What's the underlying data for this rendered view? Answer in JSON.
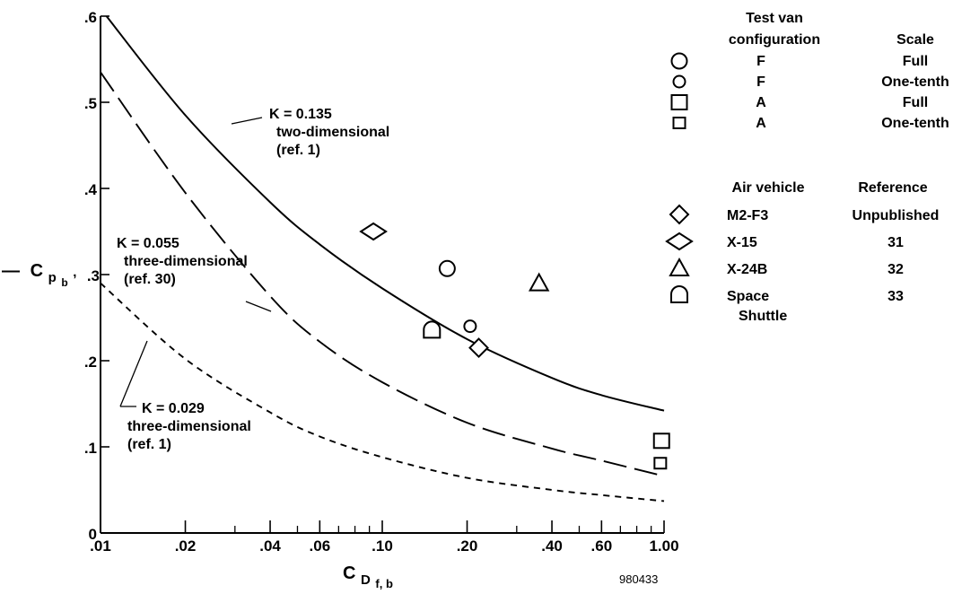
{
  "chart_data": {
    "type": "line",
    "x_scale": "log",
    "xlim": [
      0.01,
      1.0
    ],
    "ylim": [
      0,
      0.6
    ],
    "xlabel_main": "C",
    "xlabel_sub": "D",
    "xlabel_subsub": "f, b",
    "ylabel_prefix": "—",
    "ylabel_main": "C",
    "ylabel_sub": "p",
    "ylabel_subsub": "b",
    "x_ticks": [
      {
        "value": 0.01,
        "label": ".01"
      },
      {
        "value": 0.02,
        "label": ".02"
      },
      {
        "value": 0.04,
        "label": ".04"
      },
      {
        "value": 0.06,
        "label": ".06"
      },
      {
        "value": 0.1,
        "label": ".10"
      },
      {
        "value": 0.2,
        "label": ".20"
      },
      {
        "value": 0.4,
        "label": ".40"
      },
      {
        "value": 0.6,
        "label": ".60"
      },
      {
        "value": 1.0,
        "label": "1.00"
      }
    ],
    "x_minor_ticks": [
      0.03,
      0.05,
      0.07,
      0.08,
      0.09,
      0.3,
      0.5,
      0.7,
      0.8,
      0.9
    ],
    "y_ticks": [
      {
        "value": 0,
        "label": "0"
      },
      {
        "value": 0.1,
        "label": ".1"
      },
      {
        "value": 0.2,
        "label": ".2"
      },
      {
        "value": 0.3,
        "label": ".3"
      },
      {
        "value": 0.4,
        "label": ".4"
      },
      {
        "value": 0.5,
        "label": ".5"
      },
      {
        "value": 0.6,
        "label": ".6"
      }
    ],
    "series": [
      {
        "K": 0.135,
        "style": "solid",
        "x": [
          0.0105,
          0.02,
          0.04,
          0.06,
          0.1,
          0.2,
          0.4,
          0.6,
          1.0
        ],
        "y": [
          0.6,
          0.485,
          0.384,
          0.335,
          0.284,
          0.225,
          0.18,
          0.16,
          0.142
        ]
      },
      {
        "K": 0.055,
        "style": "dashed",
        "x": [
          0.01,
          0.02,
          0.04,
          0.06,
          0.1,
          0.2,
          0.4,
          0.6,
          1.0
        ],
        "y": [
          0.535,
          0.395,
          0.275,
          0.222,
          0.175,
          0.128,
          0.098,
          0.084,
          0.066
        ]
      },
      {
        "K": 0.029,
        "style": "dotted",
        "x": [
          0.01,
          0.02,
          0.04,
          0.06,
          0.1,
          0.2,
          0.4,
          0.6,
          1.0
        ],
        "y": [
          0.29,
          0.202,
          0.14,
          0.112,
          0.088,
          0.064,
          0.05,
          0.044,
          0.037
        ]
      }
    ],
    "points": [
      {
        "x": 0.17,
        "y": 0.307,
        "marker": "circle-large"
      },
      {
        "x": 0.205,
        "y": 0.24,
        "marker": "circle-small"
      },
      {
        "x": 0.98,
        "y": 0.107,
        "marker": "square-large"
      },
      {
        "x": 0.97,
        "y": 0.081,
        "marker": "square-small"
      },
      {
        "x": 0.093,
        "y": 0.35,
        "marker": "diamond-wide"
      },
      {
        "x": 0.22,
        "y": 0.215,
        "marker": "diamond"
      },
      {
        "x": 0.36,
        "y": 0.29,
        "marker": "triangle"
      },
      {
        "x": 0.15,
        "y": 0.235,
        "marker": "dome"
      }
    ],
    "annotations": [
      {
        "lines": [
          "K = 0.135",
          "two-dimensional",
          "(ref. 1)"
        ]
      },
      {
        "lines": [
          "K = 0.055",
          "three-dimensional",
          "(ref. 30)"
        ]
      },
      {
        "lines": [
          "K = 0.029",
          "three-dimensional",
          "(ref. 1)"
        ]
      }
    ],
    "legend": {
      "header1_col1_line1": "Test van",
      "header1_col1_line2": "configuration",
      "header1_col2": "Scale",
      "group1": [
        {
          "marker": "circle-large",
          "name": "F",
          "value": "Full"
        },
        {
          "marker": "circle-small",
          "name": "F",
          "value": "One-tenth"
        },
        {
          "marker": "square-large",
          "name": "A",
          "value": "Full"
        },
        {
          "marker": "square-small",
          "name": "A",
          "value": "One-tenth"
        }
      ],
      "header2_col1": "Air vehicle",
      "header2_col2": "Reference",
      "group2": [
        {
          "marker": "diamond",
          "name": "M2-F3",
          "value": "Unpublished"
        },
        {
          "marker": "diamond-wide",
          "name": "X-15",
          "value": "31"
        },
        {
          "marker": "triangle",
          "name": "X-24B",
          "value": "32"
        },
        {
          "marker": "dome",
          "name": "Space",
          "name2": "Shuttle",
          "value": "33"
        }
      ]
    },
    "figure_id": "980433"
  }
}
